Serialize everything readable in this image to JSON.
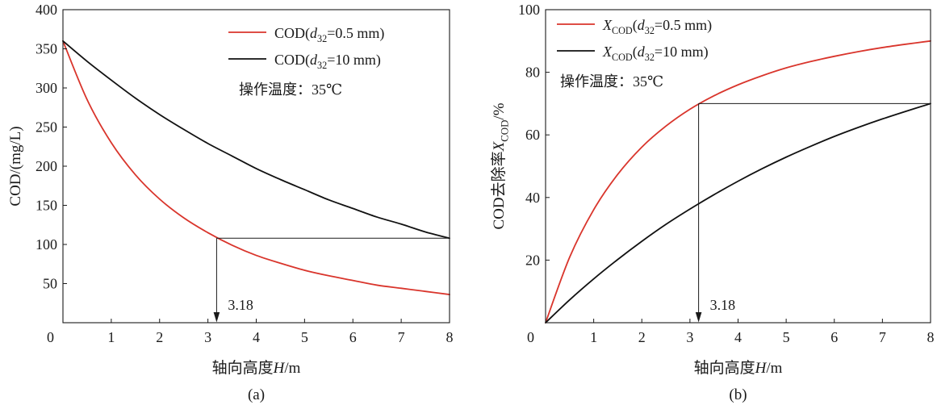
{
  "chart_data": [
    {
      "type": "line",
      "caption": "(a)",
      "xlabel": [
        {
          "plain": "轴向高度"
        },
        {
          "italic": "H"
        },
        {
          "plain": "/m"
        }
      ],
      "ylabel": [
        {
          "plain": "COD/(mg/L)"
        }
      ],
      "xlim": [
        0,
        8
      ],
      "ylim": [
        0,
        400
      ],
      "xticks": [
        0,
        1,
        2,
        3,
        4,
        5,
        6,
        7,
        8
      ],
      "yticks": [
        50,
        100,
        150,
        200,
        250,
        300,
        350,
        400
      ],
      "grid": false,
      "legend": "top-right",
      "x": [
        0,
        0.5,
        1,
        1.5,
        2,
        2.5,
        3,
        3.5,
        4,
        4.5,
        5,
        5.5,
        6,
        6.5,
        7,
        7.5,
        8
      ],
      "series": [
        {
          "name": [
            {
              "plain": "COD("
            },
            {
              "italic": "d"
            },
            {
              "sub": "32"
            },
            {
              "plain": "=0.5 mm)"
            }
          ],
          "color": "#d9352c",
          "values": [
            360,
            285,
            230,
            189,
            158,
            134,
            115,
            99,
            86,
            76,
            67,
            60,
            54,
            48,
            44,
            40,
            36
          ]
        },
        {
          "name": [
            {
              "plain": "COD("
            },
            {
              "italic": "d"
            },
            {
              "sub": "32"
            },
            {
              "plain": "=10 mm)"
            }
          ],
          "color": "#111111",
          "values": [
            360,
            334,
            310,
            287,
            266,
            247,
            229,
            213,
            197,
            183,
            170,
            157,
            146,
            135,
            126,
            116,
            108
          ]
        }
      ],
      "note": "操作温度：35℃",
      "marker": {
        "x": 3.18,
        "y": 108,
        "label": "3.18",
        "hline_to_x": 8
      }
    },
    {
      "type": "line",
      "caption": "(b)",
      "xlabel": [
        {
          "plain": "轴向高度"
        },
        {
          "italic": "H"
        },
        {
          "plain": "/m"
        }
      ],
      "ylabel": [
        {
          "plain": "COD去除率"
        },
        {
          "italic": "X"
        },
        {
          "sub": "COD"
        },
        {
          "plain": "/%"
        }
      ],
      "xlim": [
        0,
        8
      ],
      "ylim": [
        0,
        100
      ],
      "xticks": [
        0,
        1,
        2,
        3,
        4,
        5,
        6,
        7,
        8
      ],
      "yticks": [
        20,
        40,
        60,
        80,
        100
      ],
      "grid": false,
      "legend": "top-left",
      "x": [
        0,
        0.5,
        1,
        1.5,
        2,
        2.5,
        3,
        3.5,
        4,
        4.5,
        5,
        5.5,
        6,
        6.5,
        7,
        7.5,
        8
      ],
      "series": [
        {
          "name": [
            {
              "italic": "X"
            },
            {
              "sub": "COD"
            },
            {
              "plain": "("
            },
            {
              "italic": "d"
            },
            {
              "sub": "32"
            },
            {
              "plain": "=0.5 mm)"
            }
          ],
          "color": "#d9352c",
          "values": [
            0,
            20.9,
            36.1,
            47.4,
            56.1,
            62.8,
            68.2,
            72.5,
            76.0,
            78.9,
            81.4,
            83.4,
            85.1,
            86.6,
            87.9,
            89.0,
            90.0
          ]
        },
        {
          "name": [
            {
              "italic": "X"
            },
            {
              "sub": "COD"
            },
            {
              "plain": "("
            },
            {
              "italic": "d"
            },
            {
              "sub": "32"
            },
            {
              "plain": "=10 mm)"
            }
          ],
          "color": "#111111",
          "values": [
            0,
            7.3,
            14.0,
            20.2,
            26.0,
            31.4,
            36.3,
            40.9,
            45.2,
            49.2,
            52.9,
            56.3,
            59.5,
            62.4,
            65.1,
            67.6,
            70.0
          ]
        }
      ],
      "note": "操作温度：35℃",
      "marker": {
        "x": 3.18,
        "y": 70,
        "label": "3.18",
        "hline_to_x": 8
      }
    }
  ]
}
